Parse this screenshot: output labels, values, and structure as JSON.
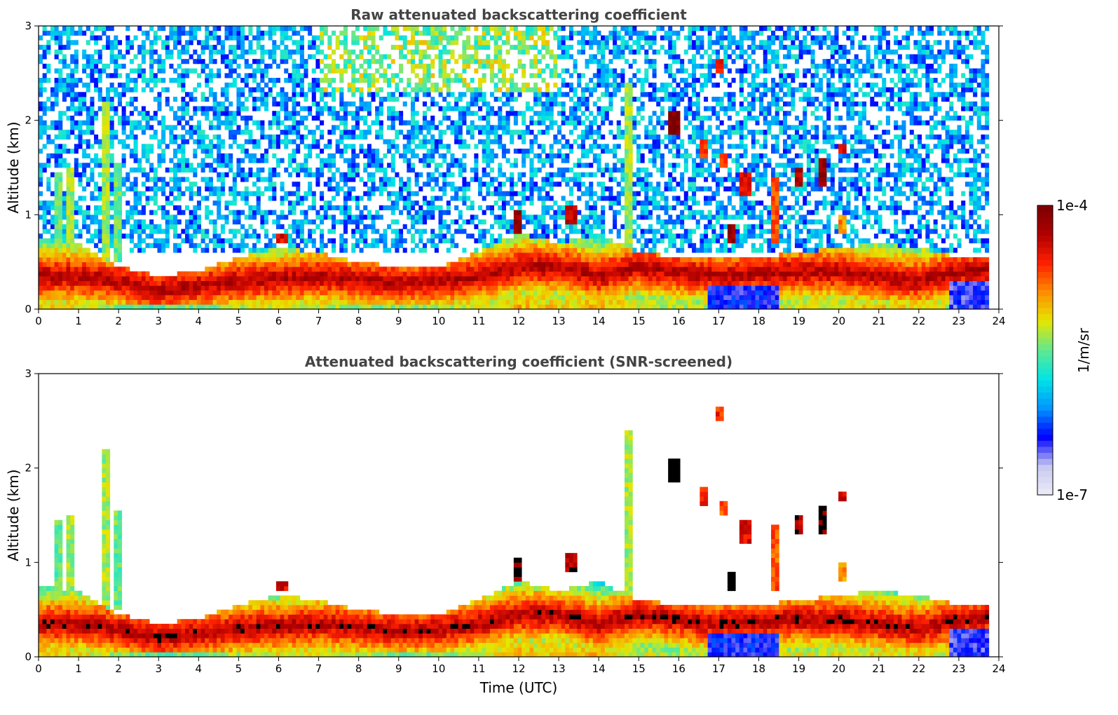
{
  "chart_data": [
    {
      "type": "heatmap",
      "title": "Raw attenuated backscattering coefficient",
      "xlabel": "",
      "ylabel": "Altitude (km)",
      "xlim": [
        0,
        24
      ],
      "ylim": [
        0,
        3
      ],
      "x_ticks": [
        0,
        1,
        2,
        3,
        4,
        5,
        6,
        7,
        8,
        9,
        10,
        11,
        12,
        13,
        14,
        15,
        16,
        17,
        18,
        19,
        20,
        21,
        22,
        23,
        24
      ],
      "y_ticks": [
        0,
        1,
        2,
        3
      ],
      "data_end_time": 23.75,
      "screened": false,
      "boundary_layer_top_km": [
        [
          0,
          0.75
        ],
        [
          1,
          0.7
        ],
        [
          2,
          0.45
        ],
        [
          3,
          0.35
        ],
        [
          4,
          0.4
        ],
        [
          5,
          0.55
        ],
        [
          6,
          0.65
        ],
        [
          7,
          0.6
        ],
        [
          8,
          0.5
        ],
        [
          9,
          0.45
        ],
        [
          10,
          0.45
        ],
        [
          11,
          0.6
        ],
        [
          12,
          0.8
        ],
        [
          13,
          0.7
        ],
        [
          14,
          0.8
        ],
        [
          15,
          0.6
        ],
        [
          16,
          0.55
        ],
        [
          17,
          0.55
        ],
        [
          18,
          0.55
        ],
        [
          19,
          0.6
        ],
        [
          20,
          0.65
        ],
        [
          21,
          0.7
        ],
        [
          22,
          0.65
        ],
        [
          23,
          0.55
        ],
        [
          23.75,
          0.55
        ]
      ],
      "aerosol_layer_peak_km": [
        [
          0,
          0.35
        ],
        [
          1,
          0.35
        ],
        [
          2,
          0.3
        ],
        [
          3,
          0.2
        ],
        [
          4,
          0.25
        ],
        [
          5,
          0.3
        ],
        [
          6,
          0.32
        ],
        [
          7,
          0.35
        ],
        [
          8,
          0.32
        ],
        [
          9,
          0.28
        ],
        [
          10,
          0.3
        ],
        [
          11,
          0.35
        ],
        [
          12,
          0.45
        ],
        [
          13,
          0.45
        ],
        [
          14,
          0.35
        ],
        [
          15,
          0.45
        ],
        [
          16,
          0.4
        ],
        [
          17,
          0.35
        ],
        [
          18,
          0.38
        ],
        [
          19,
          0.4
        ],
        [
          20,
          0.4
        ],
        [
          21,
          0.35
        ],
        [
          22,
          0.3
        ],
        [
          23,
          0.4
        ],
        [
          23.75,
          0.42
        ]
      ],
      "cloud_features": [
        {
          "t": 0.5,
          "z_low": 0.7,
          "z_high": 1.45,
          "intensity": 0.5
        },
        {
          "t": 0.8,
          "z_low": 0.6,
          "z_high": 1.5,
          "intensity": 0.55
        },
        {
          "t": 1.7,
          "z_low": 0.5,
          "z_high": 2.2,
          "intensity": 0.55
        },
        {
          "t": 2.0,
          "z_low": 0.5,
          "z_high": 1.55,
          "intensity": 0.5
        },
        {
          "t": 6.1,
          "z_low": 0.7,
          "z_high": 0.8,
          "intensity": 0.85
        },
        {
          "t": 12.0,
          "z_low": 0.8,
          "z_high": 1.05,
          "intensity": 0.95
        },
        {
          "t": 13.3,
          "z_low": 0.9,
          "z_high": 1.1,
          "intensity": 0.9
        },
        {
          "t": 14.75,
          "z_low": 0.5,
          "z_high": 2.4,
          "intensity": 0.55
        },
        {
          "t": 15.9,
          "z_low": 1.85,
          "z_high": 2.1,
          "intensity": 1.0
        },
        {
          "t": 16.6,
          "z_low": 1.6,
          "z_high": 1.8,
          "intensity": 0.8
        },
        {
          "t": 17.0,
          "z_low": 2.5,
          "z_high": 2.65,
          "intensity": 0.8
        },
        {
          "t": 17.1,
          "z_low": 1.5,
          "z_high": 1.65,
          "intensity": 0.75
        },
        {
          "t": 17.3,
          "z_low": 0.7,
          "z_high": 0.9,
          "intensity": 0.95
        },
        {
          "t": 17.65,
          "z_low": 1.2,
          "z_high": 1.45,
          "intensity": 0.85
        },
        {
          "t": 18.4,
          "z_low": 0.7,
          "z_high": 1.4,
          "intensity": 0.75
        },
        {
          "t": 19.0,
          "z_low": 1.3,
          "z_high": 1.5,
          "intensity": 0.9
        },
        {
          "t": 19.6,
          "z_low": 1.3,
          "z_high": 1.6,
          "intensity": 0.95
        },
        {
          "t": 20.1,
          "z_low": 1.65,
          "z_high": 1.75,
          "intensity": 0.85
        },
        {
          "t": 20.1,
          "z_low": 0.8,
          "z_high": 1.0,
          "intensity": 0.7
        }
      ]
    },
    {
      "type": "heatmap",
      "title": "Attenuated backscattering coefficient (SNR-screened)",
      "xlabel": "Time (UTC)",
      "ylabel": "Altitude (km)",
      "xlim": [
        0,
        24
      ],
      "ylim": [
        0,
        3
      ],
      "x_ticks": [
        0,
        1,
        2,
        3,
        4,
        5,
        6,
        7,
        8,
        9,
        10,
        11,
        12,
        13,
        14,
        15,
        16,
        17,
        18,
        19,
        20,
        21,
        22,
        23,
        24
      ],
      "y_ticks": [
        0,
        1,
        2,
        3
      ],
      "data_end_time": 23.75,
      "screened": true,
      "saturated_color": "#000000"
    }
  ],
  "colorbar": {
    "label": "1/m/sr",
    "max_label": "1e-4",
    "min_label": "1e-7",
    "scale": "log",
    "range": [
      1e-07,
      0.0001
    ],
    "colormap": [
      "#ececf8",
      "#c8c8f0",
      "#0000ff",
      "#0096ff",
      "#00e5e5",
      "#60e890",
      "#e6e600",
      "#ff8c00",
      "#ff2000",
      "#b00000",
      "#7a0000"
    ]
  }
}
